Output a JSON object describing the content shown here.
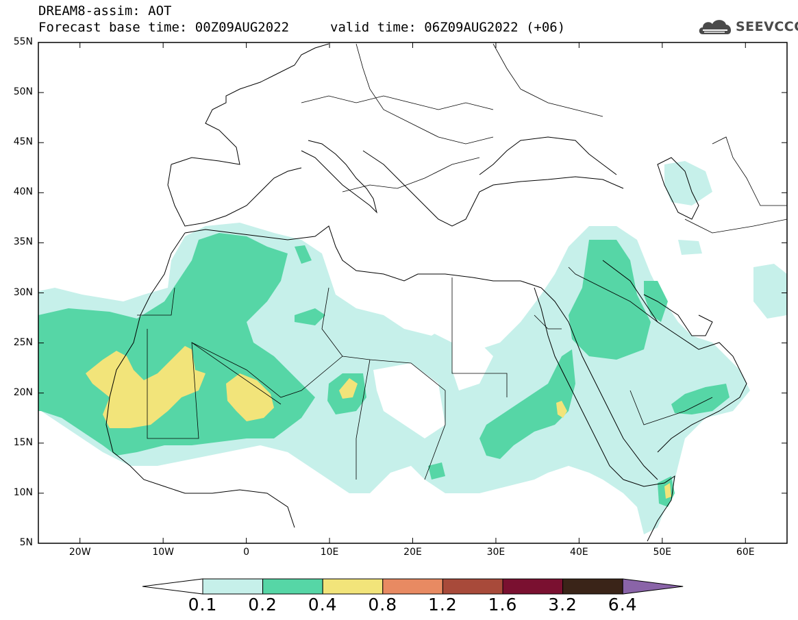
{
  "header": {
    "model_line": "DREAM8-assim: AOT",
    "base_time_line": "Forecast base time: 00Z09AUG2022",
    "valid_time_line": "valid time: 06Z09AUG2022 (+06)"
  },
  "logo": {
    "text": "SEEVCCC",
    "icon": "cloud-icon"
  },
  "map": {
    "lat_labels": [
      "55N",
      "50N",
      "45N",
      "40N",
      "35N",
      "30N",
      "25N",
      "20N",
      "15N",
      "10N",
      "5N"
    ],
    "lon_labels": [
      "20W",
      "10W",
      "0",
      "10E",
      "20E",
      "30E",
      "40E",
      "50E",
      "60E"
    ],
    "field": "AOT",
    "levels": [
      "0.1",
      "0.2",
      "0.4",
      "0.8",
      "1.2",
      "1.6",
      "3.2",
      "6.4"
    ]
  },
  "colorbar": {
    "colors": [
      "#ffffff",
      "#c6f0ea",
      "#56d6a6",
      "#f2e47a",
      "#e88a62",
      "#a84a3a",
      "#7a1030",
      "#3a2418",
      "#8a64a8"
    ],
    "labels": [
      "0.1",
      "0.2",
      "0.4",
      "0.8",
      "1.2",
      "1.6",
      "3.2",
      "6.4"
    ]
  }
}
